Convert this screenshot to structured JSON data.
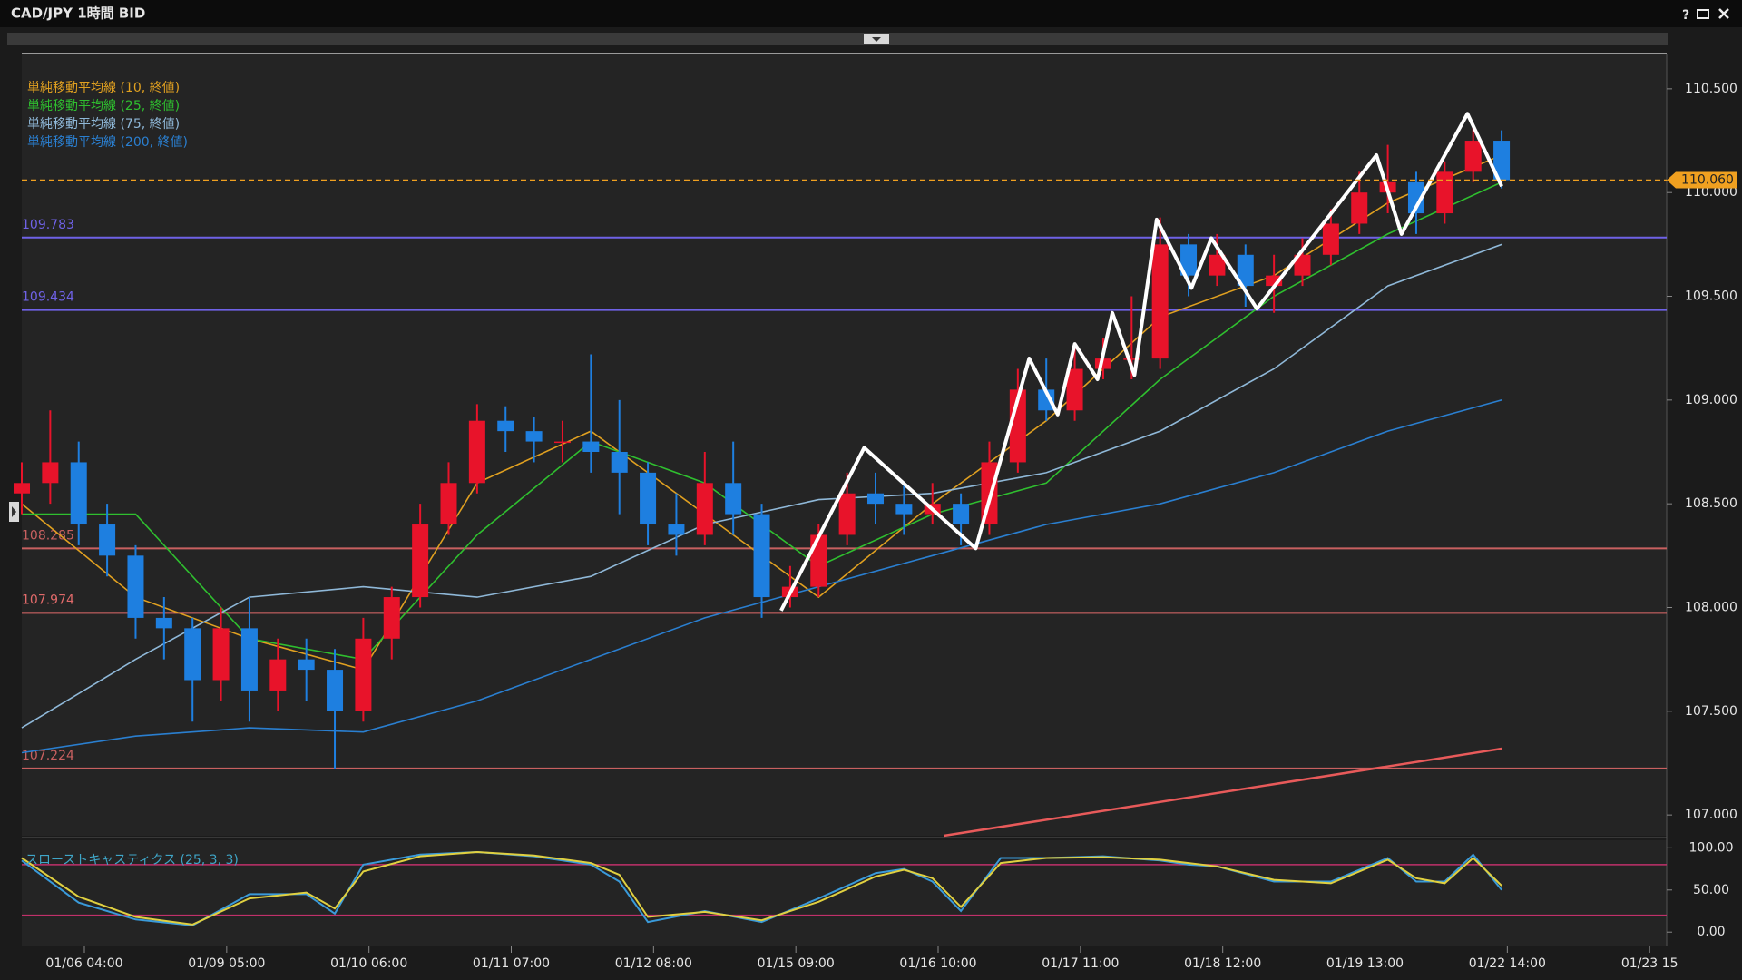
{
  "window": {
    "title": "CAD/JPY 1時間 BID",
    "help": "?"
  },
  "chart_data": [
    {
      "type": "candlestick",
      "x": [
        0,
        5,
        10,
        15,
        20,
        25,
        30,
        35,
        40,
        45,
        50,
        55,
        60,
        65,
        70,
        75,
        80,
        85,
        90,
        95,
        100,
        105,
        110,
        115,
        120,
        125,
        130,
        135,
        140,
        145,
        150,
        155,
        160,
        165,
        170,
        175,
        180,
        185,
        190,
        195,
        200,
        205,
        210,
        215,
        220,
        225,
        230,
        235,
        240,
        245,
        250,
        255,
        260
      ],
      "open": [
        108.55,
        108.6,
        108.7,
        108.4,
        108.25,
        107.95,
        107.9,
        107.65,
        107.9,
        107.6,
        107.75,
        107.7,
        107.5,
        107.85,
        108.05,
        108.4,
        108.6,
        108.9,
        108.85,
        108.8,
        108.8,
        108.75,
        108.65,
        108.4,
        108.35,
        108.6,
        108.45,
        108.05,
        108.1,
        108.35,
        108.55,
        108.5,
        108.45,
        108.5,
        108.4,
        108.7,
        109.05,
        108.95,
        109.15,
        109.2,
        109.2,
        109.75,
        109.6,
        109.7,
        109.55,
        109.6,
        109.7,
        109.85,
        110.0,
        110.05,
        109.9,
        110.1,
        110.25
      ],
      "high": [
        108.7,
        108.95,
        108.8,
        108.5,
        108.3,
        108.05,
        107.95,
        108.0,
        108.05,
        107.85,
        107.85,
        107.8,
        107.95,
        108.1,
        108.5,
        108.7,
        108.98,
        108.97,
        108.92,
        108.9,
        109.22,
        109.0,
        108.7,
        108.55,
        108.75,
        108.8,
        108.5,
        108.2,
        108.4,
        108.65,
        108.65,
        108.6,
        108.6,
        108.55,
        108.8,
        109.15,
        109.2,
        109.25,
        109.3,
        109.5,
        109.88,
        109.8,
        109.8,
        109.75,
        109.7,
        109.78,
        109.92,
        110.1,
        110.23,
        110.1,
        110.15,
        110.32,
        110.3
      ],
      "low": [
        108.45,
        108.5,
        108.3,
        108.15,
        107.85,
        107.75,
        107.45,
        107.55,
        107.45,
        107.5,
        107.55,
        107.22,
        107.45,
        107.75,
        108.0,
        108.35,
        108.55,
        108.75,
        108.7,
        108.7,
        108.65,
        108.45,
        108.3,
        108.25,
        108.3,
        108.35,
        107.95,
        108.0,
        108.05,
        108.3,
        108.4,
        108.35,
        108.4,
        108.3,
        108.35,
        108.65,
        108.9,
        108.9,
        109.1,
        109.1,
        109.15,
        109.5,
        109.55,
        109.45,
        109.42,
        109.55,
        109.65,
        109.8,
        109.9,
        109.8,
        109.85,
        110.05,
        110.02
      ],
      "close": [
        108.6,
        108.7,
        108.4,
        108.25,
        107.95,
        107.9,
        107.65,
        107.9,
        107.6,
        107.75,
        107.7,
        107.5,
        107.85,
        108.05,
        108.4,
        108.6,
        108.9,
        108.85,
        108.8,
        108.8,
        108.75,
        108.65,
        108.4,
        108.35,
        108.6,
        108.45,
        108.05,
        108.1,
        108.35,
        108.55,
        108.5,
        108.45,
        108.5,
        108.4,
        108.7,
        109.05,
        108.95,
        109.15,
        109.2,
        109.2,
        109.75,
        109.6,
        109.7,
        109.55,
        109.6,
        109.7,
        109.85,
        110.0,
        110.05,
        109.9,
        110.1,
        110.25,
        110.06
      ],
      "up_color": "#e8132a",
      "down_color": "#1e7fe0",
      "series": [
        {
          "name": "単純移動平均線 (10, 終値)",
          "color": "#e0a020",
          "x": [
            0,
            20,
            40,
            60,
            80,
            100,
            120,
            140,
            160,
            180,
            200,
            220,
            240,
            260
          ],
          "values": [
            108.5,
            108.05,
            107.85,
            107.7,
            108.6,
            108.85,
            108.45,
            108.05,
            108.5,
            108.9,
            109.4,
            109.6,
            109.95,
            110.18
          ]
        },
        {
          "name": "単純移動平均線 (25, 終値)",
          "color": "#2fbf2f",
          "x": [
            0,
            20,
            40,
            60,
            80,
            100,
            120,
            140,
            160,
            180,
            200,
            220,
            240,
            260
          ],
          "values": [
            108.45,
            108.45,
            107.85,
            107.75,
            108.35,
            108.8,
            108.6,
            108.2,
            108.45,
            108.6,
            109.1,
            109.5,
            109.8,
            110.05
          ]
        },
        {
          "name": "単純移動平均線 (75, 終値)",
          "color": "#8fb8d8",
          "x": [
            0,
            20,
            40,
            60,
            80,
            100,
            120,
            140,
            160,
            180,
            200,
            220,
            240,
            260
          ],
          "values": [
            107.42,
            107.75,
            108.05,
            108.1,
            108.05,
            108.15,
            108.4,
            108.52,
            108.55,
            108.65,
            108.85,
            109.15,
            109.55,
            109.75
          ]
        },
        {
          "name": "単純移動平均線 (200, 終値)",
          "color": "#2a7fd0",
          "x": [
            0,
            20,
            40,
            60,
            80,
            100,
            120,
            140,
            160,
            180,
            200,
            220,
            240,
            260
          ],
          "values": [
            107.3,
            107.38,
            107.42,
            107.4,
            107.55,
            107.75,
            107.95,
            108.1,
            108.25,
            108.4,
            108.5,
            108.65,
            108.85,
            109.0
          ]
        }
      ],
      "hlines": [
        {
          "value": 109.783,
          "color": "#6f62e6"
        },
        {
          "value": 109.434,
          "color": "#6f62e6"
        },
        {
          "value": 108.285,
          "color": "#c86060"
        },
        {
          "value": 107.974,
          "color": "#e06a6a"
        },
        {
          "value": 107.224,
          "color": "#c86060"
        }
      ],
      "current_price": {
        "value": 110.06,
        "label": "110.060",
        "color": "#f0a020"
      },
      "overlay_lines": [
        {
          "color": "#ffffff",
          "x": [
            133.4,
            148,
            167.6,
            177,
            182,
            185,
            189,
            191.6,
            195.5,
            199.4,
            205.5,
            209,
            217,
            238,
            242.4,
            254,
            260
          ],
          "values": [
            107.985,
            108.77,
            108.285,
            109.2,
            108.93,
            109.27,
            109.1,
            109.42,
            109.12,
            109.87,
            109.54,
            109.78,
            109.44,
            110.18,
            109.8,
            110.38,
            110.03
          ]
        },
        {
          "color": "#e85a5a",
          "x": [
            162,
            260
          ],
          "values": [
            106.9,
            107.32
          ]
        }
      ],
      "xlim": [
        0,
        289
      ],
      "ylim": [
        106.9,
        110.67
      ],
      "yticks": [
        {
          "value": 107,
          "label": "107.000"
        },
        {
          "value": 107.5,
          "label": "107.500"
        },
        {
          "value": 108,
          "label": "108.000"
        },
        {
          "value": 108.5,
          "label": "108.500"
        },
        {
          "value": 109,
          "label": "109.000"
        },
        {
          "value": 109.5,
          "label": "109.500"
        },
        {
          "value": 110,
          "label": "110.000"
        },
        {
          "value": 110.5,
          "label": "110.500"
        }
      ],
      "xticks": [
        {
          "value": 11,
          "label": "01/06 04:00"
        },
        {
          "value": 36,
          "label": "01/09 05:00"
        },
        {
          "value": 61,
          "label": "01/10 06:00"
        },
        {
          "value": 86,
          "label": "01/11 07:00"
        },
        {
          "value": 111,
          "label": "01/12 08:00"
        },
        {
          "value": 136,
          "label": "01/15 09:00"
        },
        {
          "value": 161,
          "label": "01/16 10:00"
        },
        {
          "value": 186,
          "label": "01/17 11:00"
        },
        {
          "value": 211,
          "label": "01/18 12:00"
        },
        {
          "value": 236,
          "label": "01/19 13:00"
        },
        {
          "value": 261,
          "label": "01/22 14:00"
        },
        {
          "value": 286,
          "label": "01/23 15"
        }
      ]
    },
    {
      "type": "line",
      "title": "スローストキャスティクス (25, 3, 3)",
      "x": [
        0,
        10,
        20,
        30,
        40,
        50,
        55,
        60,
        70,
        80,
        90,
        100,
        105,
        110,
        120,
        130,
        140,
        150,
        155,
        160,
        165,
        172,
        180,
        190,
        200,
        205,
        210,
        220,
        230,
        240,
        245,
        250,
        255,
        260
      ],
      "series": [
        {
          "color": "#3a9ad9",
          "values": [
            85,
            35,
            15,
            8,
            45,
            45,
            22,
            80,
            92,
            95,
            90,
            80,
            60,
            12,
            25,
            12,
            40,
            70,
            75,
            60,
            25,
            88,
            88,
            90,
            85,
            80,
            78,
            60,
            60,
            88,
            60,
            60,
            92,
            50
          ]
        },
        {
          "color": "#e0d040",
          "values": [
            88,
            42,
            18,
            9,
            40,
            47,
            28,
            72,
            90,
            95,
            91,
            82,
            68,
            18,
            24,
            14,
            36,
            66,
            74,
            64,
            30,
            82,
            88,
            89,
            86,
            82,
            78,
            62,
            58,
            86,
            64,
            58,
            88,
            55
          ]
        }
      ],
      "levels": [
        80,
        20
      ],
      "level_color": "#c0306a",
      "xlim": [
        0,
        289
      ],
      "ylim": [
        -17,
        109
      ],
      "yticks": [
        {
          "value": 100,
          "label": "100.00"
        },
        {
          "value": 50,
          "label": "50.00"
        },
        {
          "value": 0,
          "label": "0.00"
        }
      ]
    }
  ]
}
